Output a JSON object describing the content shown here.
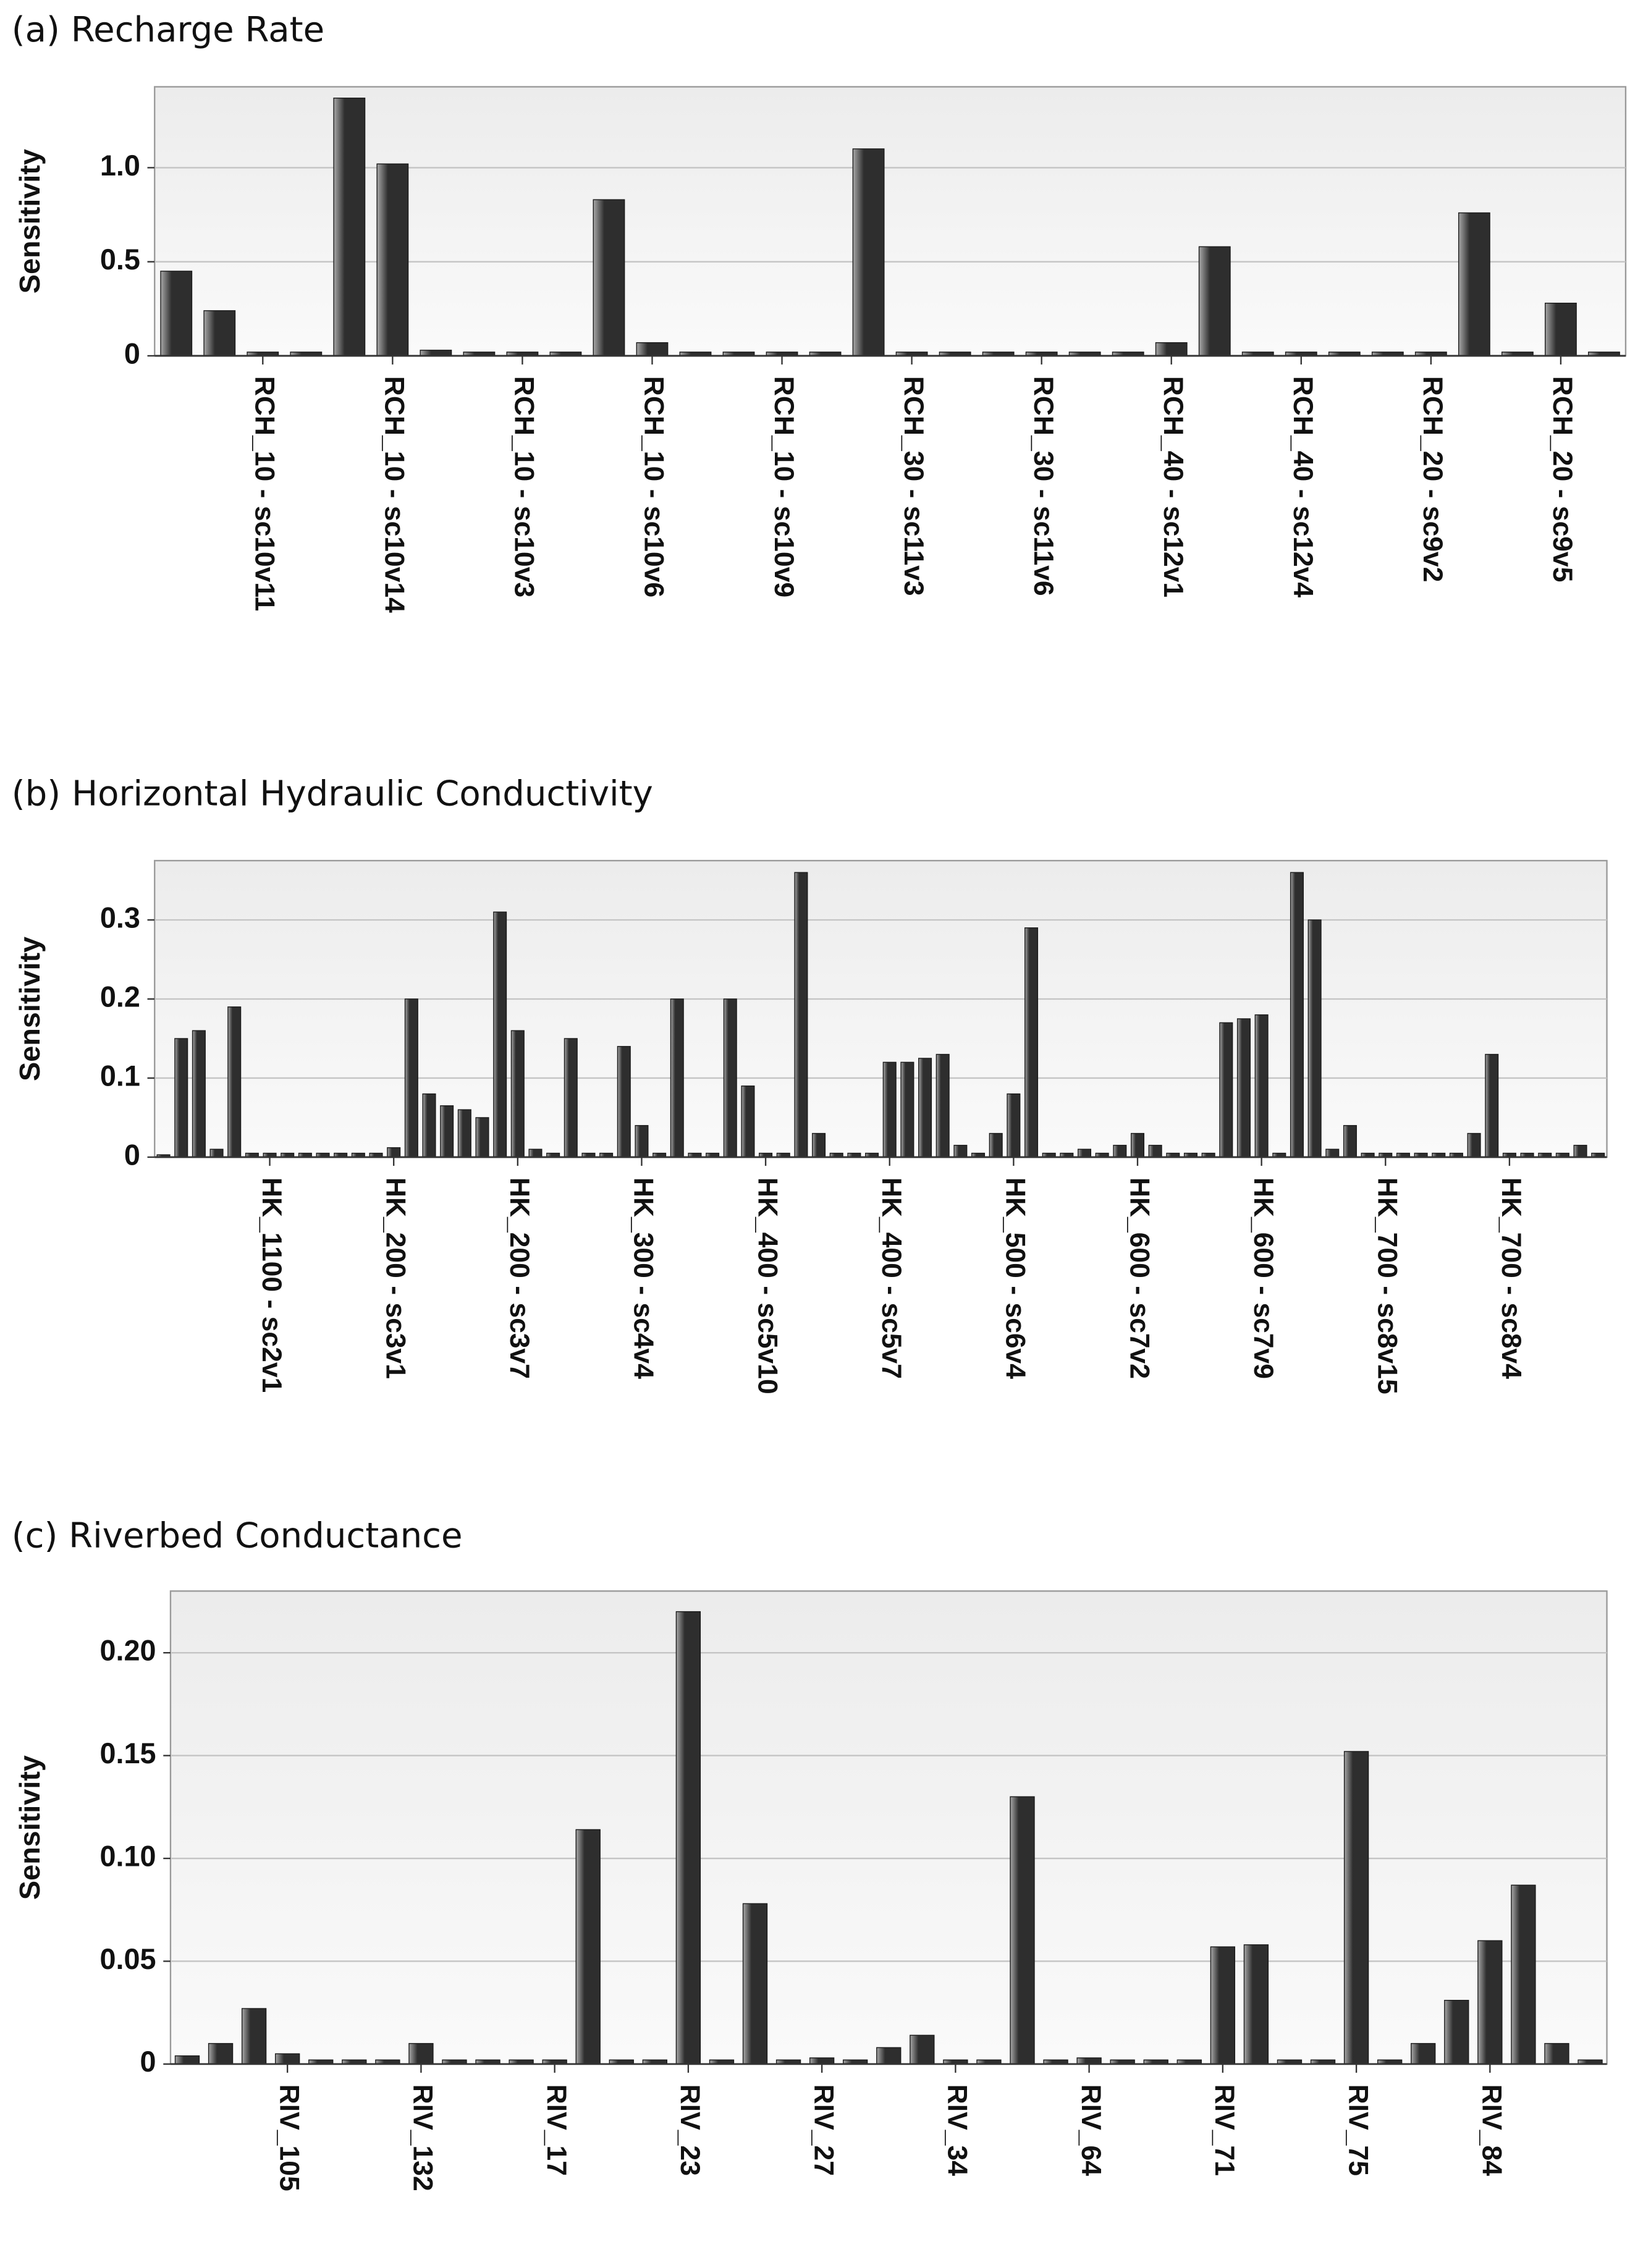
{
  "chart_data": [
    {
      "type": "bar",
      "title": "(a) Recharge Rate",
      "ylabel": "Sensitivity",
      "color": "#2e2e2e",
      "grid": true,
      "categories": [
        null,
        null,
        "RCH_10 - sc10v11",
        null,
        null,
        "RCH_10 - sc10v14",
        null,
        null,
        "RCH_10 - sc10v3",
        null,
        null,
        "RCH_10 - sc10v6",
        null,
        null,
        "RCH_10 - sc10v9",
        null,
        null,
        "RCH_30 - sc11v3",
        null,
        null,
        "RCH_30 - sc11v6",
        null,
        null,
        "RCH_40 - sc12v1",
        null,
        null,
        "RCH_40 - sc12v4",
        null,
        null,
        "RCH_20 - sc9v2",
        null,
        null,
        "RCH_20 - sc9v5",
        null
      ],
      "values": [
        0.45,
        0.24,
        0.02,
        0.02,
        1.37,
        1.02,
        0.03,
        0.02,
        0.02,
        0.02,
        0.83,
        0.07,
        0.02,
        0.02,
        0.02,
        0.02,
        1.1,
        0.02,
        0.02,
        0.02,
        0.02,
        0.02,
        0.02,
        0.07,
        0.58,
        0.02,
        0.02,
        0.02,
        0.02,
        0.02,
        0.76,
        0.02,
        0.28,
        0.02
      ],
      "ylim": [
        0,
        1.43
      ],
      "yticks": [
        0,
        0.5,
        {
          "value": 1,
          "label": "1.0"
        }
      ]
    },
    {
      "type": "bar",
      "title": "(b) Horizontal Hydraulic Conductivity",
      "ylabel": "Sensitivity",
      "color": "#2e2e2e",
      "grid": true,
      "categories": [
        null,
        null,
        null,
        null,
        null,
        null,
        "HK_1100 - sc2v1",
        null,
        null,
        null,
        null,
        null,
        null,
        "HK_200 - sc3v1",
        null,
        null,
        null,
        null,
        null,
        null,
        "HK_200 - sc3v7",
        null,
        null,
        null,
        null,
        null,
        null,
        "HK_300 - sc4v4",
        null,
        null,
        null,
        null,
        null,
        null,
        "HK_400 - sc5v10",
        null,
        null,
        null,
        null,
        null,
        null,
        "HK_400 - sc5v7",
        null,
        null,
        null,
        null,
        null,
        null,
        "HK_500 - sc6v4",
        null,
        null,
        null,
        null,
        null,
        null,
        "HK_600 - sc7v2",
        null,
        null,
        null,
        null,
        null,
        null,
        "HK_600 - sc7v9",
        null,
        null,
        null,
        null,
        null,
        null,
        "HK_700 - sc8v15",
        null,
        null,
        null,
        null,
        null,
        null,
        "HK_700 - sc8v4",
        null,
        null,
        null,
        null,
        null
      ],
      "values": [
        0.003,
        0.15,
        0.16,
        0.01,
        0.19,
        0.005,
        0.005,
        0.005,
        0.005,
        0.005,
        0.005,
        0.005,
        0.005,
        0.012,
        0.2,
        0.08,
        0.065,
        0.06,
        0.05,
        0.31,
        0.16,
        0.01,
        0.005,
        0.15,
        0.005,
        0.005,
        0.14,
        0.04,
        0.005,
        0.2,
        0.005,
        0.005,
        0.2,
        0.09,
        0.005,
        0.005,
        0.36,
        0.03,
        0.005,
        0.005,
        0.005,
        0.12,
        0.12,
        0.125,
        0.13,
        0.015,
        0.005,
        0.03,
        0.08,
        0.29,
        0.005,
        0.005,
        0.01,
        0.005,
        0.015,
        0.03,
        0.015,
        0.005,
        0.005,
        0.005,
        0.17,
        0.175,
        0.18,
        0.005,
        0.36,
        0.3,
        0.01,
        0.04,
        0.005,
        0.005,
        0.005,
        0.005,
        0.005,
        0.005,
        0.03,
        0.13,
        0.005,
        0.005,
        0.005,
        0.005,
        0.015,
        0.005
      ],
      "ylim": [
        0,
        0.375
      ],
      "yticks": [
        0,
        0.1,
        0.2,
        0.3
      ]
    },
    {
      "type": "bar",
      "title": "(c) Riverbed Conductance",
      "ylabel": "Sensitivity",
      "color": "#2e2e2e",
      "grid": true,
      "categories": [
        null,
        null,
        null,
        "RIV_105",
        null,
        null,
        null,
        "RIV_132",
        null,
        null,
        null,
        "RIV_17",
        null,
        null,
        null,
        "RIV_23",
        null,
        null,
        null,
        "RIV_27",
        null,
        null,
        null,
        "RIV_34",
        null,
        null,
        null,
        "RIV_64",
        null,
        null,
        null,
        "RIV_71",
        null,
        null,
        null,
        "RIV_75",
        null,
        null,
        null,
        "RIV_84",
        null,
        null,
        null
      ],
      "values": [
        0.004,
        0.01,
        0.027,
        0.005,
        0.002,
        0.002,
        0.002,
        0.01,
        0.002,
        0.002,
        0.002,
        0.002,
        0.114,
        0.002,
        0.002,
        0.22,
        0.002,
        0.078,
        0.002,
        0.003,
        0.002,
        0.008,
        0.014,
        0.002,
        0.002,
        0.13,
        0.002,
        0.003,
        0.002,
        0.002,
        0.002,
        0.057,
        0.058,
        0.002,
        0.002,
        0.152,
        0.002,
        0.01,
        0.031,
        0.06,
        0.087,
        0.01,
        0.002
      ],
      "ylim": [
        0,
        0.23
      ],
      "yticks": [
        0,
        0.05,
        {
          "value": 0.1,
          "label": "0.10"
        },
        0.15,
        {
          "value": 0.2,
          "label": "0.20"
        }
      ]
    }
  ]
}
